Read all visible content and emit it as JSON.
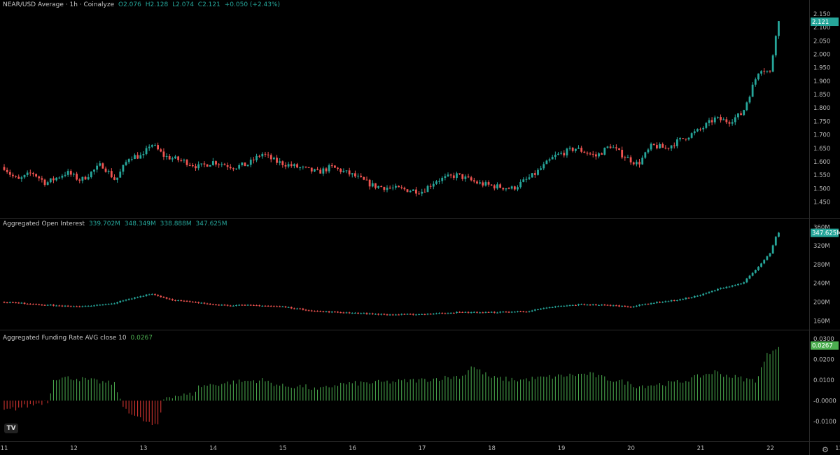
{
  "header": {
    "title": "NEAR/USD Average · 1h · Coinalyze",
    "o": "O2.076",
    "h": "H2.128",
    "l": "L2.074",
    "c": "C2.121",
    "chg": "+0.050 (+2.43%)"
  },
  "oi_header": {
    "title": "Aggregated Open Interest",
    "v1": "339.702M",
    "v2": "348.349M",
    "v3": "338.888M",
    "v4": "347.625M"
  },
  "fr_header": {
    "title": "Aggregated Funding Rate AVG close 10",
    "v": "0.0267"
  },
  "colors": {
    "up": "#26a69a",
    "down": "#ef5350",
    "fr_pos": "#4caf50",
    "fr_neg": "#e53935"
  },
  "chart_data": [
    {
      "type": "candlestick",
      "title": "NEAR/USD Average · 1h · Coinalyze",
      "yticks": [
        "2.150",
        "2.100",
        "2.050",
        "2.000",
        "1.950",
        "1.900",
        "1.850",
        "1.800",
        "1.750",
        "1.700",
        "1.650",
        "1.600",
        "1.550",
        "1.500",
        "1.450"
      ],
      "ylim": [
        1.42,
        2.155
      ],
      "last_value": "2.121",
      "xticks": [
        "11",
        "12",
        "13",
        "14",
        "15",
        "16",
        "17",
        "18",
        "19",
        "20",
        "21",
        "22",
        "13:"
      ],
      "price_path": [
        [
          11,
          1.58
        ],
        [
          11.1,
          1.55
        ],
        [
          11.2,
          1.53
        ],
        [
          11.4,
          1.56
        ],
        [
          11.6,
          1.52
        ],
        [
          11.9,
          1.56
        ],
        [
          12.1,
          1.53
        ],
        [
          12.4,
          1.59
        ],
        [
          12.6,
          1.53
        ],
        [
          12.8,
          1.62
        ],
        [
          13.0,
          1.62
        ],
        [
          13.1,
          1.67
        ],
        [
          13.3,
          1.62
        ],
        [
          13.6,
          1.6
        ],
        [
          13.8,
          1.58
        ],
        [
          14.0,
          1.6
        ],
        [
          14.3,
          1.58
        ],
        [
          14.5,
          1.59
        ],
        [
          14.7,
          1.63
        ],
        [
          14.9,
          1.6
        ],
        [
          15.2,
          1.58
        ],
        [
          15.5,
          1.56
        ],
        [
          15.7,
          1.58
        ],
        [
          16.0,
          1.55
        ],
        [
          16.3,
          1.51
        ],
        [
          16.6,
          1.5
        ],
        [
          17.0,
          1.49
        ],
        [
          17.2,
          1.53
        ],
        [
          17.5,
          1.55
        ],
        [
          17.8,
          1.52
        ],
        [
          18.0,
          1.51
        ],
        [
          18.3,
          1.5
        ],
        [
          18.6,
          1.55
        ],
        [
          18.9,
          1.62
        ],
        [
          19.2,
          1.65
        ],
        [
          19.5,
          1.62
        ],
        [
          19.7,
          1.66
        ],
        [
          19.9,
          1.62
        ],
        [
          20.1,
          1.59
        ],
        [
          20.3,
          1.66
        ],
        [
          20.5,
          1.65
        ],
        [
          20.7,
          1.68
        ],
        [
          21.0,
          1.72
        ],
        [
          21.2,
          1.76
        ],
        [
          21.4,
          1.75
        ],
        [
          21.6,
          1.78
        ],
        [
          21.7,
          1.85
        ],
        [
          21.85,
          1.95
        ],
        [
          22.0,
          1.93
        ],
        [
          22.1,
          2.12
        ]
      ],
      "candles": 268
    },
    {
      "type": "line",
      "title": "Aggregated Open Interest",
      "yticks": [
        "360M",
        "320M",
        "280M",
        "240M",
        "200M",
        "160M"
      ],
      "ylim": [
        150,
        365
      ],
      "last_value": "347.625M",
      "oi_path": [
        [
          11,
          200
        ],
        [
          11.5,
          195
        ],
        [
          12.0,
          190
        ],
        [
          12.5,
          195
        ],
        [
          12.9,
          210
        ],
        [
          13.1,
          218
        ],
        [
          13.4,
          205
        ],
        [
          13.8,
          198
        ],
        [
          14.2,
          193
        ],
        [
          14.6,
          193
        ],
        [
          15.0,
          190
        ],
        [
          15.5,
          180
        ],
        [
          16.0,
          177
        ],
        [
          16.5,
          173
        ],
        [
          17.0,
          174
        ],
        [
          17.5,
          178
        ],
        [
          18.0,
          178
        ],
        [
          18.5,
          180
        ],
        [
          18.9,
          190
        ],
        [
          19.3,
          195
        ],
        [
          19.7,
          193
        ],
        [
          20.0,
          190
        ],
        [
          20.3,
          198
        ],
        [
          20.7,
          205
        ],
        [
          21.0,
          215
        ],
        [
          21.3,
          230
        ],
        [
          21.6,
          240
        ],
        [
          21.8,
          270
        ],
        [
          22.0,
          305
        ],
        [
          22.1,
          347.6
        ]
      ]
    },
    {
      "type": "bar",
      "title": "Aggregated Funding Rate AVG close 10",
      "yticks": [
        "0.0300",
        "0.0200",
        "0.0100",
        "-0.0000",
        "-0.0100"
      ],
      "ylim": [
        -0.0175,
        0.032
      ],
      "last_value": "0.0267",
      "fr_path": [
        [
          11,
          -0.005
        ],
        [
          11.4,
          -0.002
        ],
        [
          11.65,
          0.0
        ],
        [
          11.7,
          0.011
        ],
        [
          12.0,
          0.011
        ],
        [
          12.6,
          0.008
        ],
        [
          12.68,
          -0.002
        ],
        [
          12.9,
          -0.008
        ],
        [
          13.2,
          -0.013
        ],
        [
          13.3,
          0.002
        ],
        [
          13.7,
          0.003
        ],
        [
          13.8,
          0.007
        ],
        [
          14.3,
          0.009
        ],
        [
          14.7,
          0.01
        ],
        [
          15.0,
          0.007
        ],
        [
          15.3,
          0.007
        ],
        [
          15.5,
          0.005
        ],
        [
          15.8,
          0.008
        ],
        [
          16.5,
          0.009
        ],
        [
          17.0,
          0.01
        ],
        [
          17.6,
          0.012
        ],
        [
          17.7,
          0.017
        ],
        [
          18.0,
          0.011
        ],
        [
          18.4,
          0.01
        ],
        [
          18.7,
          0.011
        ],
        [
          19.0,
          0.012
        ],
        [
          19.4,
          0.013
        ],
        [
          19.6,
          0.011
        ],
        [
          19.9,
          0.009
        ],
        [
          20.1,
          0.007
        ],
        [
          20.7,
          0.009
        ],
        [
          21.2,
          0.014
        ],
        [
          21.4,
          0.012
        ],
        [
          21.7,
          0.01
        ],
        [
          21.8,
          0.01
        ],
        [
          21.95,
          0.022
        ],
        [
          22.1,
          0.0267
        ]
      ],
      "bars": 268
    }
  ]
}
